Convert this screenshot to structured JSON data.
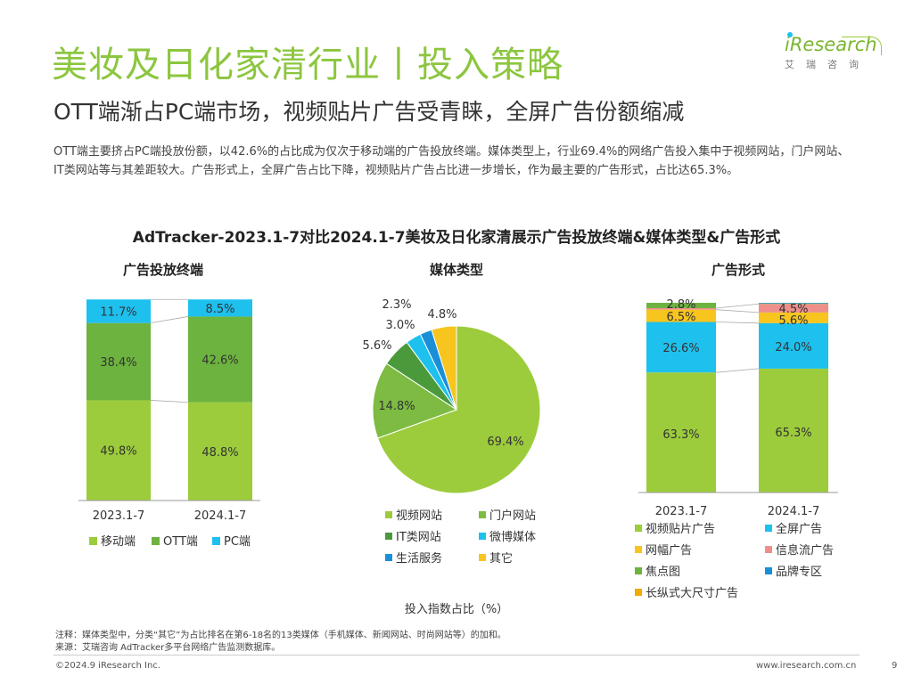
{
  "page": {
    "title": "美妆及日化家清行业丨投入策略",
    "subtitle": "OTT端渐占PC端市场，视频贴片广告受青睐，全屏广告份额缩减",
    "description": "OTT端主要挤占PC端投放份额，以42.6%的占比成为仅次于移动端的广告投放终端。媒体类型上，行业69.4%的网络广告投入集中于视频网站，门户网站、IT类网站等与其差距较大。广告形式上，全屏广告占比下降，视频贴片广告占比进一步增长，作为最主要的广告形式，占比达65.3%。",
    "main_chart_title": "AdTracker-2023.1-7对比2024.1-7美妆及日化家清展示广告投放终端&媒体类型&广告形式",
    "logo_text": "iResearch",
    "logo_sub": "艾瑞咨询",
    "note1": "注释：媒体类型中，分类“其它”为占比排名在第6-18名的13类媒体（手机媒体、新闻网站、时尚网站等）的加和。",
    "note2": "来源：艾瑞咨询 AdTracker多平台网络广告监测数据库。",
    "copyright": "©2024.9 iResearch Inc.",
    "website": "www.iresearch.com.cn",
    "page_number": "9"
  },
  "chart_data": [
    {
      "type": "bar",
      "stacked": true,
      "title": "广告投放终端",
      "categories": [
        "2023.1-7",
        "2024.1-7"
      ],
      "series": [
        {
          "name": "移动端",
          "values": [
            49.8,
            48.8
          ],
          "color": "#9ccc3c",
          "labels": [
            "49.8%",
            "48.8%"
          ]
        },
        {
          "name": "OTT端",
          "values": [
            38.4,
            42.6
          ],
          "color": "#6db33f",
          "labels": [
            "38.4%",
            "42.6%"
          ]
        },
        {
          "name": "PC端",
          "values": [
            11.7,
            8.5
          ],
          "color": "#1ec0ee",
          "labels": [
            "11.7%",
            "8.5%"
          ]
        }
      ],
      "ylim": [
        0,
        100
      ]
    },
    {
      "type": "pie",
      "title": "媒体类型",
      "slices": [
        {
          "name": "视频网站",
          "value": 69.4,
          "label": "69.4%",
          "color": "#9ccc3c"
        },
        {
          "name": "门户网站",
          "value": 14.8,
          "label": "14.8%",
          "color": "#7dbb42"
        },
        {
          "name": "IT类网站",
          "value": 5.6,
          "label": "5.6%",
          "color": "#4a9a3c"
        },
        {
          "name": "微博媒体",
          "value": 3.0,
          "label": "3.0%",
          "color": "#1ec0ee"
        },
        {
          "name": "生活服务",
          "value": 2.3,
          "label": "2.3%",
          "color": "#1a8fd8"
        },
        {
          "name": "其它",
          "value": 4.8,
          "label": "4.8%",
          "color": "#f7c51e"
        }
      ],
      "legend_order": [
        "视频网站",
        "门户网站",
        "IT类网站",
        "微博媒体",
        "生活服务",
        "其它"
      ],
      "caption": "投入指数占比（%）"
    },
    {
      "type": "bar",
      "stacked": true,
      "title": "广告形式",
      "categories": [
        "2023.1-7",
        "2024.1-7"
      ],
      "series": [
        {
          "name": "视频贴片广告",
          "values": [
            63.3,
            65.3
          ],
          "color": "#9ccc3c",
          "labels": [
            "63.3%",
            "65.3%"
          ]
        },
        {
          "name": "全屏广告",
          "values": [
            26.6,
            24.0
          ],
          "color": "#1ec0ee",
          "labels": [
            "26.6%",
            "24.0%"
          ]
        },
        {
          "name": "网幅广告",
          "values": [
            6.5,
            5.6
          ],
          "color": "#f7c51e",
          "labels": [
            "6.5%",
            "5.6%"
          ]
        },
        {
          "name": "信息流广告",
          "values": [
            0.8,
            4.5
          ],
          "color": "#ef8f8c",
          "labels": [
            "",
            "4.5%"
          ]
        },
        {
          "name": "焦点图",
          "values": [
            2.8,
            0.3
          ],
          "color": "#6db33f",
          "labels": [
            "2.8%",
            ""
          ]
        },
        {
          "name": "品牌专区",
          "values": [
            0.0,
            0.3
          ],
          "color": "#1a8fd8",
          "labels": [
            "",
            ""
          ]
        },
        {
          "name": "长纵式大尺寸广告",
          "values": [
            0.0,
            0.0
          ],
          "color": "#f2a900",
          "labels": [
            "",
            ""
          ]
        }
      ],
      "legend_order": [
        "视频贴片广告",
        "全屏广告",
        "网幅广告",
        "信息流广告",
        "焦点图",
        "品牌专区",
        "长纵式大尺寸广告"
      ],
      "ylim": [
        0,
        100
      ]
    }
  ]
}
